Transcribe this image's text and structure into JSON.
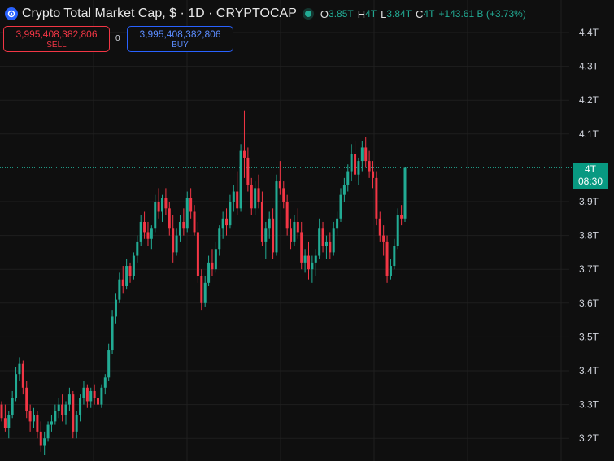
{
  "header": {
    "title": "Crypto Total Market Cap, $ · 1D · CRYPTOCAP",
    "ohlc": [
      {
        "label": "O",
        "value": "3.85T"
      },
      {
        "label": "H",
        "value": "4T"
      },
      {
        "label": "L",
        "value": "3.84T"
      },
      {
        "label": "C",
        "value": "4T"
      }
    ],
    "change": "+143.61 B (+3.73%)"
  },
  "trade": {
    "sell_price": "3,995,408,382,806",
    "sell_label": "SELL",
    "spread": "0",
    "buy_price": "3,995,408,382,806",
    "buy_label": "BUY"
  },
  "price_tag": {
    "value": "4T",
    "countdown": "08:30"
  },
  "colors": {
    "up": "#22ab94",
    "down": "#f23645",
    "background": "#0f0f0f",
    "grid": "#1f1f1f",
    "buy": "#2962ff"
  },
  "chart_data": {
    "type": "candlestick",
    "title": "Crypto Total Market Cap, $",
    "interval": "1D",
    "y_tick_labels": [
      "4.4T",
      "4.3T",
      "4.2T",
      "4.1T",
      "3.9T",
      "3.8T",
      "3.7T",
      "3.6T",
      "3.5T",
      "3.4T",
      "3.3T",
      "3.2T"
    ],
    "y_ticks": [
      4.4,
      4.3,
      4.2,
      4.1,
      3.9,
      3.8,
      3.7,
      3.6,
      3.5,
      3.4,
      3.3,
      3.2
    ],
    "ylim": [
      3.17,
      4.45
    ],
    "last_price": 4.0,
    "grid": true,
    "ohlc": [
      [
        3.3,
        3.31,
        3.25,
        3.26
      ],
      [
        3.26,
        3.3,
        3.22,
        3.23
      ],
      [
        3.23,
        3.28,
        3.2,
        3.27
      ],
      [
        3.27,
        3.34,
        3.26,
        3.32
      ],
      [
        3.32,
        3.41,
        3.31,
        3.39
      ],
      [
        3.39,
        3.44,
        3.37,
        3.42
      ],
      [
        3.42,
        3.43,
        3.33,
        3.35
      ],
      [
        3.35,
        3.37,
        3.26,
        3.28
      ],
      [
        3.28,
        3.3,
        3.22,
        3.25
      ],
      [
        3.25,
        3.29,
        3.23,
        3.27
      ],
      [
        3.27,
        3.28,
        3.2,
        3.22
      ],
      [
        3.22,
        3.25,
        3.16,
        3.18
      ],
      [
        3.18,
        3.22,
        3.15,
        3.2
      ],
      [
        3.2,
        3.25,
        3.19,
        3.24
      ],
      [
        3.24,
        3.27,
        3.22,
        3.25
      ],
      [
        3.25,
        3.3,
        3.24,
        3.28
      ],
      [
        3.28,
        3.32,
        3.26,
        3.3
      ],
      [
        3.3,
        3.33,
        3.25,
        3.27
      ],
      [
        3.27,
        3.31,
        3.24,
        3.3
      ],
      [
        3.3,
        3.35,
        3.28,
        3.33
      ],
      [
        3.33,
        3.34,
        3.2,
        3.22
      ],
      [
        3.22,
        3.28,
        3.2,
        3.27
      ],
      [
        3.27,
        3.33,
        3.25,
        3.32
      ],
      [
        3.32,
        3.37,
        3.3,
        3.35
      ],
      [
        3.35,
        3.36,
        3.29,
        3.31
      ],
      [
        3.31,
        3.35,
        3.29,
        3.34
      ],
      [
        3.34,
        3.36,
        3.3,
        3.32
      ],
      [
        3.32,
        3.35,
        3.28,
        3.3
      ],
      [
        3.3,
        3.36,
        3.29,
        3.35
      ],
      [
        3.35,
        3.39,
        3.33,
        3.38
      ],
      [
        3.38,
        3.48,
        3.37,
        3.46
      ],
      [
        3.46,
        3.58,
        3.45,
        3.56
      ],
      [
        3.56,
        3.63,
        3.54,
        3.61
      ],
      [
        3.61,
        3.69,
        3.6,
        3.67
      ],
      [
        3.67,
        3.71,
        3.63,
        3.65
      ],
      [
        3.65,
        3.73,
        3.64,
        3.71
      ],
      [
        3.71,
        3.72,
        3.66,
        3.68
      ],
      [
        3.68,
        3.75,
        3.67,
        3.74
      ],
      [
        3.74,
        3.8,
        3.72,
        3.78
      ],
      [
        3.78,
        3.86,
        3.77,
        3.84
      ],
      [
        3.84,
        3.87,
        3.79,
        3.81
      ],
      [
        3.81,
        3.84,
        3.77,
        3.79
      ],
      [
        3.79,
        3.83,
        3.76,
        3.82
      ],
      [
        3.82,
        3.92,
        3.81,
        3.9
      ],
      [
        3.9,
        3.94,
        3.85,
        3.87
      ],
      [
        3.87,
        3.92,
        3.84,
        3.91
      ],
      [
        3.91,
        3.94,
        3.86,
        3.88
      ],
      [
        3.88,
        3.9,
        3.8,
        3.82
      ],
      [
        3.82,
        3.86,
        3.72,
        3.75
      ],
      [
        3.75,
        3.82,
        3.74,
        3.8
      ],
      [
        3.8,
        3.86,
        3.78,
        3.84
      ],
      [
        3.84,
        3.88,
        3.8,
        3.82
      ],
      [
        3.82,
        3.93,
        3.81,
        3.91
      ],
      [
        3.91,
        3.94,
        3.85,
        3.87
      ],
      [
        3.87,
        3.89,
        3.8,
        3.81
      ],
      [
        3.81,
        3.84,
        3.66,
        3.68
      ],
      [
        3.68,
        3.7,
        3.58,
        3.6
      ],
      [
        3.6,
        3.68,
        3.59,
        3.66
      ],
      [
        3.66,
        3.74,
        3.65,
        3.72
      ],
      [
        3.72,
        3.76,
        3.68,
        3.7
      ],
      [
        3.7,
        3.78,
        3.69,
        3.76
      ],
      [
        3.76,
        3.83,
        3.74,
        3.82
      ],
      [
        3.82,
        3.87,
        3.79,
        3.85
      ],
      [
        3.85,
        3.88,
        3.8,
        3.83
      ],
      [
        3.83,
        3.92,
        3.82,
        3.9
      ],
      [
        3.9,
        3.95,
        3.87,
        3.93
      ],
      [
        3.93,
        3.99,
        3.86,
        3.88
      ],
      [
        3.88,
        4.07,
        3.87,
        4.05
      ],
      [
        4.05,
        4.17,
        3.97,
        4.03
      ],
      [
        4.03,
        4.06,
        3.93,
        3.95
      ],
      [
        3.95,
        3.97,
        3.86,
        3.88
      ],
      [
        3.88,
        3.96,
        3.86,
        3.94
      ],
      [
        3.94,
        3.98,
        3.88,
        3.9
      ],
      [
        3.9,
        3.93,
        3.77,
        3.78
      ],
      [
        3.78,
        3.84,
        3.73,
        3.82
      ],
      [
        3.82,
        3.87,
        3.79,
        3.85
      ],
      [
        3.85,
        3.88,
        3.73,
        3.75
      ],
      [
        3.75,
        3.98,
        3.74,
        3.96
      ],
      [
        3.96,
        4.02,
        3.92,
        3.94
      ],
      [
        3.94,
        3.96,
        3.88,
        3.9
      ],
      [
        3.9,
        3.92,
        3.8,
        3.82
      ],
      [
        3.82,
        3.85,
        3.76,
        3.78
      ],
      [
        3.78,
        3.86,
        3.77,
        3.84
      ],
      [
        3.84,
        3.88,
        3.79,
        3.81
      ],
      [
        3.81,
        3.84,
        3.7,
        3.72
      ],
      [
        3.72,
        3.76,
        3.69,
        3.74
      ],
      [
        3.74,
        3.78,
        3.67,
        3.7
      ],
      [
        3.7,
        3.74,
        3.66,
        3.72
      ],
      [
        3.72,
        3.76,
        3.68,
        3.74
      ],
      [
        3.74,
        3.85,
        3.73,
        3.82
      ],
      [
        3.82,
        3.84,
        3.75,
        3.77
      ],
      [
        3.77,
        3.8,
        3.73,
        3.78
      ],
      [
        3.78,
        3.81,
        3.73,
        3.75
      ],
      [
        3.75,
        3.84,
        3.74,
        3.82
      ],
      [
        3.82,
        3.87,
        3.8,
        3.85
      ],
      [
        3.85,
        3.94,
        3.84,
        3.92
      ],
      [
        3.92,
        3.97,
        3.9,
        3.95
      ],
      [
        3.95,
        4.01,
        3.93,
        3.99
      ],
      [
        3.99,
        4.07,
        3.96,
        4.04
      ],
      [
        4.04,
        4.08,
        3.96,
        3.98
      ],
      [
        3.98,
        4.03,
        3.95,
        4.02
      ],
      [
        4.02,
        4.08,
        3.99,
        4.06
      ],
      [
        4.06,
        4.09,
        4.0,
        4.02
      ],
      [
        4.02,
        4.05,
        3.97,
        3.99
      ],
      [
        3.99,
        4.02,
        3.94,
        3.97
      ],
      [
        3.97,
        3.99,
        3.83,
        3.85
      ],
      [
        3.85,
        3.87,
        3.78,
        3.8
      ],
      [
        3.8,
        3.83,
        3.74,
        3.78
      ],
      [
        3.78,
        3.8,
        3.66,
        3.68
      ],
      [
        3.68,
        3.73,
        3.67,
        3.71
      ],
      [
        3.71,
        3.79,
        3.7,
        3.77
      ],
      [
        3.77,
        3.88,
        3.76,
        3.86
      ],
      [
        3.86,
        3.89,
        3.83,
        3.85
      ],
      [
        3.85,
        4.0,
        3.84,
        4.0
      ]
    ]
  }
}
